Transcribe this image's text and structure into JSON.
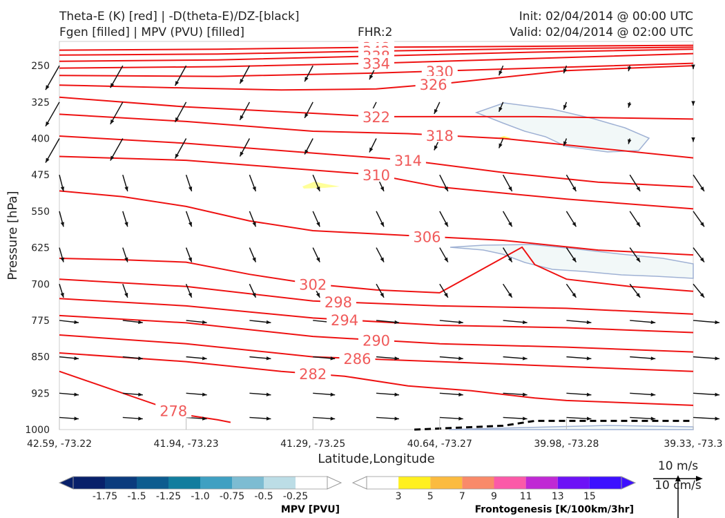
{
  "header": {
    "title_left_1": "Theta-E (K) [red] | -D(theta-E)/DZ-[black]",
    "title_left_2": "Fgen [filled] | MPV (PVU) [filled]",
    "fhr": "FHR:2",
    "init": "Init: 02/04/2014 @ 00:00 UTC",
    "valid": "Valid: 02/04/2014 @ 02:00 UTC"
  },
  "chart_data": {
    "type": "contour",
    "xlabel": "Latitude,Longitude",
    "ylabel": "Pressure [hPa]",
    "x_ticks": [
      "42.59, -73.22",
      "41.94, -73.23",
      "41.29, -73.25",
      "40.64, -73.27",
      "39.98, -73.28",
      "39.33, -73.3"
    ],
    "y_ticks": [
      250,
      325,
      400,
      475,
      550,
      625,
      700,
      775,
      850,
      925,
      1000
    ],
    "ylim": [
      1000,
      200
    ],
    "theta_e_contours": [
      {
        "label": "348",
        "x_frac": [
          0,
          0.25,
          0.5,
          0.75,
          1
        ],
        "p": [
          218,
          216,
          212,
          210,
          208
        ]
      },
      {
        "label": "342",
        "x_frac": [
          0,
          0.25,
          0.5,
          0.75,
          1
        ],
        "p": [
          228,
          226,
          220,
          215,
          212
        ]
      },
      {
        "label": "338",
        "x_frac": [
          0,
          0.25,
          0.5,
          0.75,
          1
        ],
        "p": [
          241,
          238,
          230,
          222,
          216
        ]
      },
      {
        "label": "334",
        "x_frac": [
          0,
          0.25,
          0.5,
          0.75,
          1
        ],
        "p": [
          255,
          252,
          245,
          235,
          225
        ]
      },
      {
        "label": "330",
        "x_frac": [
          0,
          0.25,
          0.5,
          0.75,
          1
        ],
        "p": [
          270,
          272,
          265,
          255,
          245
        ]
      },
      {
        "label": "326",
        "x_frac": [
          0,
          0.2,
          0.35,
          0.5,
          0.62,
          0.8,
          1
        ],
        "p": [
          290,
          296,
          300,
          298,
          285,
          260,
          250
        ]
      },
      {
        "label": "322",
        "x_frac": [
          0,
          0.2,
          0.4,
          0.5,
          0.6,
          0.75,
          1
        ],
        "p": [
          315,
          335,
          348,
          355,
          355,
          355,
          360
        ]
      },
      {
        "label": "318",
        "x_frac": [
          0,
          0.2,
          0.4,
          0.55,
          0.7,
          0.85,
          1
        ],
        "p": [
          350,
          365,
          385,
          390,
          400,
          420,
          440
        ]
      },
      {
        "label": "314",
        "x_frac": [
          0,
          0.2,
          0.4,
          0.55,
          0.7,
          0.85,
          1
        ],
        "p": [
          395,
          410,
          430,
          445,
          470,
          490,
          500
        ]
      },
      {
        "label": "310",
        "x_frac": [
          0,
          0.2,
          0.35,
          0.5,
          0.6,
          0.8,
          1
        ],
        "p": [
          437,
          445,
          460,
          475,
          500,
          525,
          545
        ]
      },
      {
        "label": "306",
        "x_frac": [
          0,
          0.1,
          0.2,
          0.3,
          0.4,
          0.55,
          0.7,
          0.85,
          1
        ],
        "p": [
          508,
          520,
          540,
          570,
          590,
          600,
          610,
          630,
          640
        ]
      },
      {
        "label": "302",
        "x_frac": [
          0,
          0.1,
          0.2,
          0.3,
          0.4,
          0.5,
          0.6,
          0.73,
          0.75,
          0.8,
          0.9,
          1
        ],
        "p": [
          647,
          650,
          655,
          680,
          700,
          712,
          718,
          624,
          660,
          690,
          705,
          715
        ]
      },
      {
        "label": "298",
        "x_frac": [
          0,
          0.2,
          0.4,
          0.6,
          0.8,
          1
        ],
        "p": [
          690,
          705,
          735,
          745,
          750,
          762
        ]
      },
      {
        "label": "294",
        "x_frac": [
          0,
          0.2,
          0.4,
          0.6,
          0.8,
          1
        ],
        "p": [
          730,
          745,
          770,
          785,
          790,
          800
        ]
      },
      {
        "label": "290",
        "x_frac": [
          0,
          0.2,
          0.4,
          0.6,
          0.8,
          1
        ],
        "p": [
          765,
          780,
          808,
          823,
          830,
          840
        ]
      },
      {
        "label": "286",
        "x_frac": [
          0,
          0.2,
          0.4,
          0.6,
          0.8,
          1
        ],
        "p": [
          805,
          823,
          850,
          860,
          870,
          880
        ]
      },
      {
        "label": "282",
        "x_frac": [
          0,
          0.2,
          0.35,
          0.45,
          0.55,
          0.65,
          0.75,
          0.8,
          0.9,
          1
        ],
        "p": [
          842,
          860,
          880,
          890,
          910,
          920,
          935,
          940,
          945,
          950
        ]
      },
      {
        "label": "278",
        "x_frac": [
          0,
          0.2,
          0.25,
          0.27
        ],
        "p": [
          880,
          970,
          980,
          985
        ]
      }
    ],
    "neg_dthetae_dz_dashed": {
      "x_frac": [
        0.56,
        0.7,
        0.75,
        0.8,
        1
      ],
      "p": [
        1000,
        992,
        982,
        982,
        982
      ]
    },
    "mpv_colorbar": {
      "label": "MPV [PVU]",
      "ticks": [
        "-1.75",
        "-1.5",
        "-1.25",
        "-1.0",
        "-0.75",
        "-0.5",
        "-0.25"
      ],
      "colors": [
        "#08206a",
        "#0b3b7d",
        "#0d5c8f",
        "#127d9e",
        "#3fa0c2",
        "#7dbcd2",
        "#bcdde6",
        "#ffffff"
      ]
    },
    "fgen_colorbar": {
      "label": "Frontogenesis [K/100km/3hr]",
      "ticks": [
        "3",
        "5",
        "7",
        "9",
        "11",
        "13",
        "15"
      ],
      "colors": [
        "#ffffff",
        "#fff01f",
        "#fbbb3f",
        "#f98a6a",
        "#fb5aa8",
        "#c029d4",
        "#6d12f6",
        "#3d10ff"
      ]
    },
    "wind_key": {
      "label1": "10 m/s",
      "label2": "10 cm/s"
    }
  }
}
